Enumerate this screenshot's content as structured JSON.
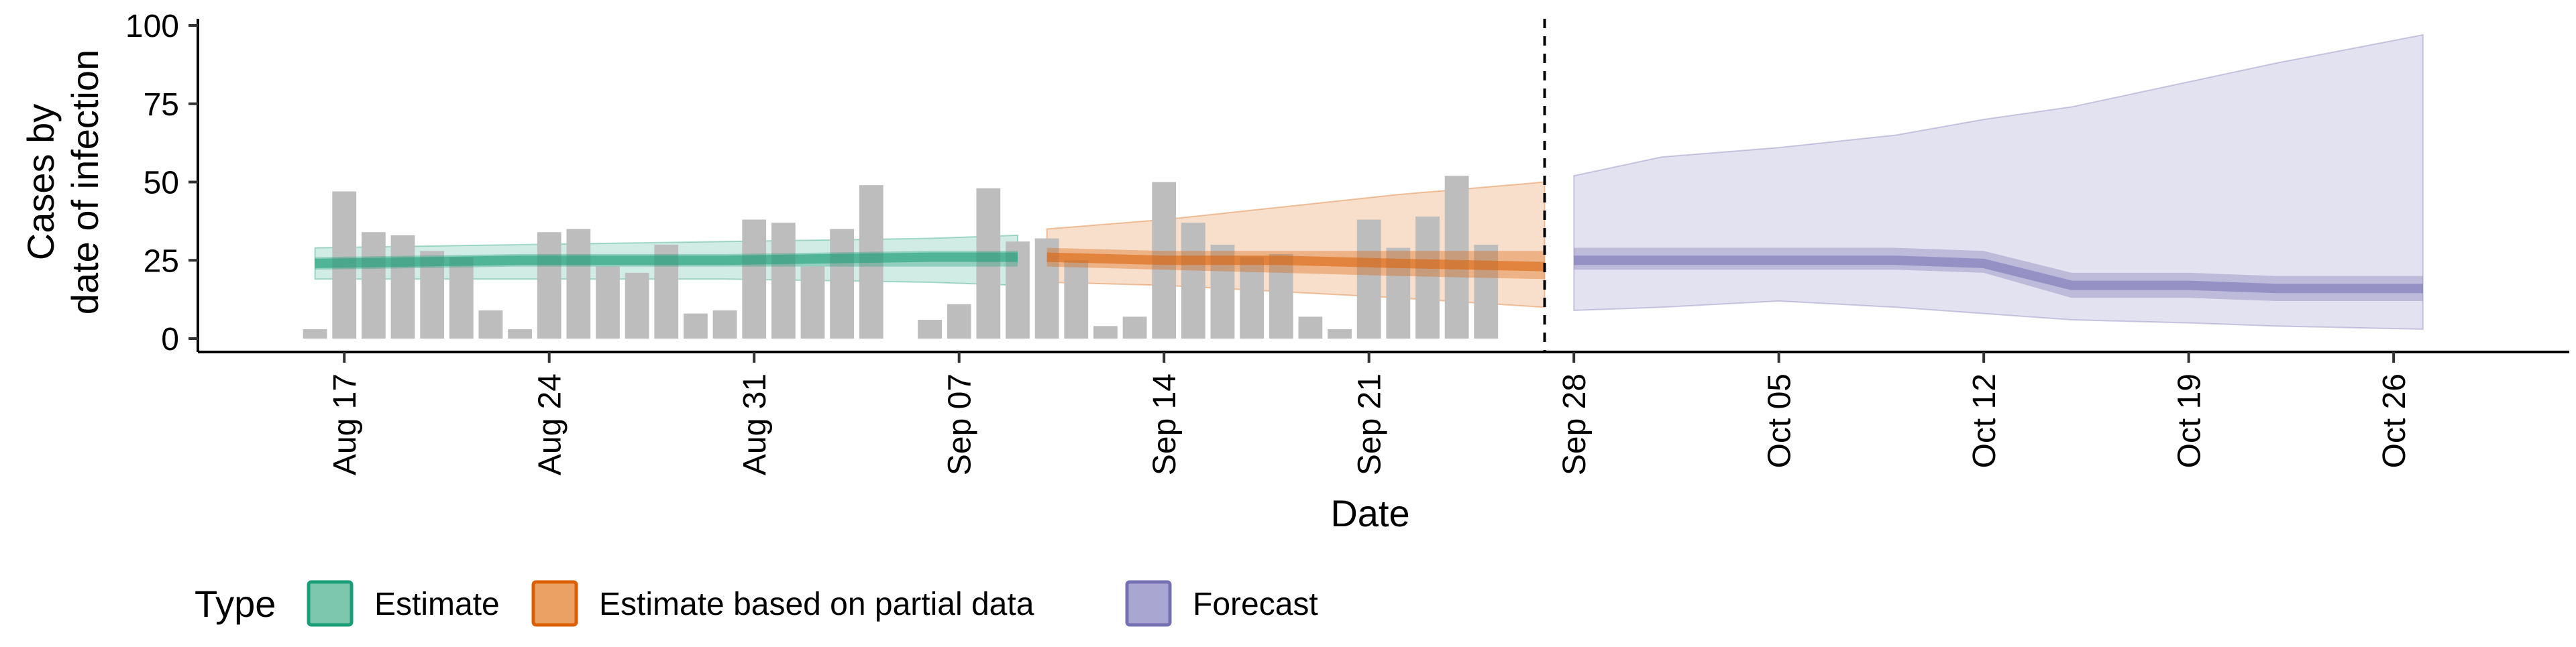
{
  "chart_data": {
    "type": "bar",
    "xlabel": "Date",
    "ylabel_lines": [
      "Cases by",
      "date of infection"
    ],
    "ylim": [
      0,
      100
    ],
    "yticks": [
      0,
      25,
      50,
      75,
      100
    ],
    "x_range": [
      "2025-08-12",
      "2025-11-01"
    ],
    "xticks": [
      {
        "date": "2025-08-17",
        "label": "Aug 17"
      },
      {
        "date": "2025-08-24",
        "label": "Aug 24"
      },
      {
        "date": "2025-08-31",
        "label": "Aug 31"
      },
      {
        "date": "2025-09-07",
        "label": "Sep 07"
      },
      {
        "date": "2025-09-14",
        "label": "Sep 14"
      },
      {
        "date": "2025-09-21",
        "label": "Sep 21"
      },
      {
        "date": "2025-09-28",
        "label": "Sep 28"
      },
      {
        "date": "2025-10-05",
        "label": "Oct 05"
      },
      {
        "date": "2025-10-12",
        "label": "Oct 12"
      },
      {
        "date": "2025-10-19",
        "label": "Oct 19"
      },
      {
        "date": "2025-10-26",
        "label": "Oct 26"
      }
    ],
    "forecast_date": "2025-09-27",
    "grid": false,
    "bars": {
      "color": "#bdbdbd",
      "dates": [
        "2025-08-16",
        "2025-08-17",
        "2025-08-18",
        "2025-08-19",
        "2025-08-20",
        "2025-08-21",
        "2025-08-22",
        "2025-08-23",
        "2025-08-24",
        "2025-08-25",
        "2025-08-26",
        "2025-08-27",
        "2025-08-28",
        "2025-08-29",
        "2025-08-30",
        "2025-08-31",
        "2025-09-01",
        "2025-09-02",
        "2025-09-03",
        "2025-09-04",
        "2025-09-05",
        "2025-09-06",
        "2025-09-07",
        "2025-09-08",
        "2025-09-09",
        "2025-09-10",
        "2025-09-11",
        "2025-09-12",
        "2025-09-13",
        "2025-09-14",
        "2025-09-15",
        "2025-09-16",
        "2025-09-17",
        "2025-09-18",
        "2025-09-19",
        "2025-09-20",
        "2025-09-21",
        "2025-09-22",
        "2025-09-23",
        "2025-09-24",
        "2025-09-25",
        "2025-09-26"
      ],
      "values": [
        3,
        47,
        34,
        33,
        28,
        26,
        9,
        3,
        34,
        35,
        23,
        21,
        30,
        8,
        9,
        38,
        37,
        23,
        35,
        49,
        0,
        6,
        11,
        48,
        31,
        32,
        25,
        4,
        7,
        50,
        37,
        30,
        26,
        27,
        7,
        3,
        38,
        29,
        39,
        52,
        30,
        0
      ]
    },
    "series": [
      {
        "name": "Estimate",
        "color": "#1b9e77",
        "dates": [
          "2025-08-16",
          "2025-08-23",
          "2025-08-30",
          "2025-09-06",
          "2025-09-09"
        ],
        "median": [
          24,
          25,
          25,
          26,
          26
        ],
        "inner": [
          [
            22,
            26
          ],
          [
            23,
            27
          ],
          [
            23,
            27
          ],
          [
            23,
            28
          ],
          [
            23,
            28
          ]
        ],
        "outer": [
          [
            19,
            29
          ],
          [
            19,
            30
          ],
          [
            19,
            31
          ],
          [
            18,
            32
          ],
          [
            17,
            33
          ]
        ]
      },
      {
        "name": "Estimate based on partial data",
        "color": "#d95f02",
        "dates": [
          "2025-09-10",
          "2025-09-14",
          "2025-09-18",
          "2025-09-22",
          "2025-09-27"
        ],
        "median": [
          26,
          25,
          25,
          24,
          23
        ],
        "inner": [
          [
            23,
            29
          ],
          [
            22,
            28
          ],
          [
            21,
            28
          ],
          [
            20,
            28
          ],
          [
            19,
            28
          ]
        ],
        "outer": [
          [
            18,
            35
          ],
          [
            17,
            38
          ],
          [
            15,
            42
          ],
          [
            13,
            46
          ],
          [
            10,
            50
          ]
        ]
      },
      {
        "name": "Forecast",
        "color": "#7570b3",
        "dates": [
          "2025-09-28",
          "2025-10-01",
          "2025-10-05",
          "2025-10-09",
          "2025-10-12",
          "2025-10-15",
          "2025-10-19",
          "2025-10-22",
          "2025-10-27"
        ],
        "median": [
          25,
          25,
          25,
          25,
          24,
          17,
          17,
          16,
          16
        ],
        "inner": [
          [
            22,
            29
          ],
          [
            22,
            29
          ],
          [
            22,
            29
          ],
          [
            22,
            29
          ],
          [
            21,
            28
          ],
          [
            13,
            21
          ],
          [
            13,
            21
          ],
          [
            12,
            20
          ],
          [
            12,
            20
          ]
        ],
        "outer": [
          [
            9,
            52
          ],
          [
            10,
            58
          ],
          [
            12,
            61
          ],
          [
            10,
            65
          ],
          [
            8,
            70
          ],
          [
            6,
            74
          ],
          [
            5,
            82
          ],
          [
            4,
            88
          ],
          [
            3,
            97
          ]
        ]
      }
    ],
    "legend": {
      "title": "Type",
      "position": "bottom-left",
      "entries": [
        {
          "label": "Estimate",
          "fill": "#7cc7ad",
          "stroke": "#1b9e77"
        },
        {
          "label": "Estimate based on partial data",
          "fill": "#eba064",
          "stroke": "#d95f02"
        },
        {
          "label": "Forecast",
          "fill": "#aaa6d2",
          "stroke": "#7570b3"
        }
      ]
    }
  }
}
